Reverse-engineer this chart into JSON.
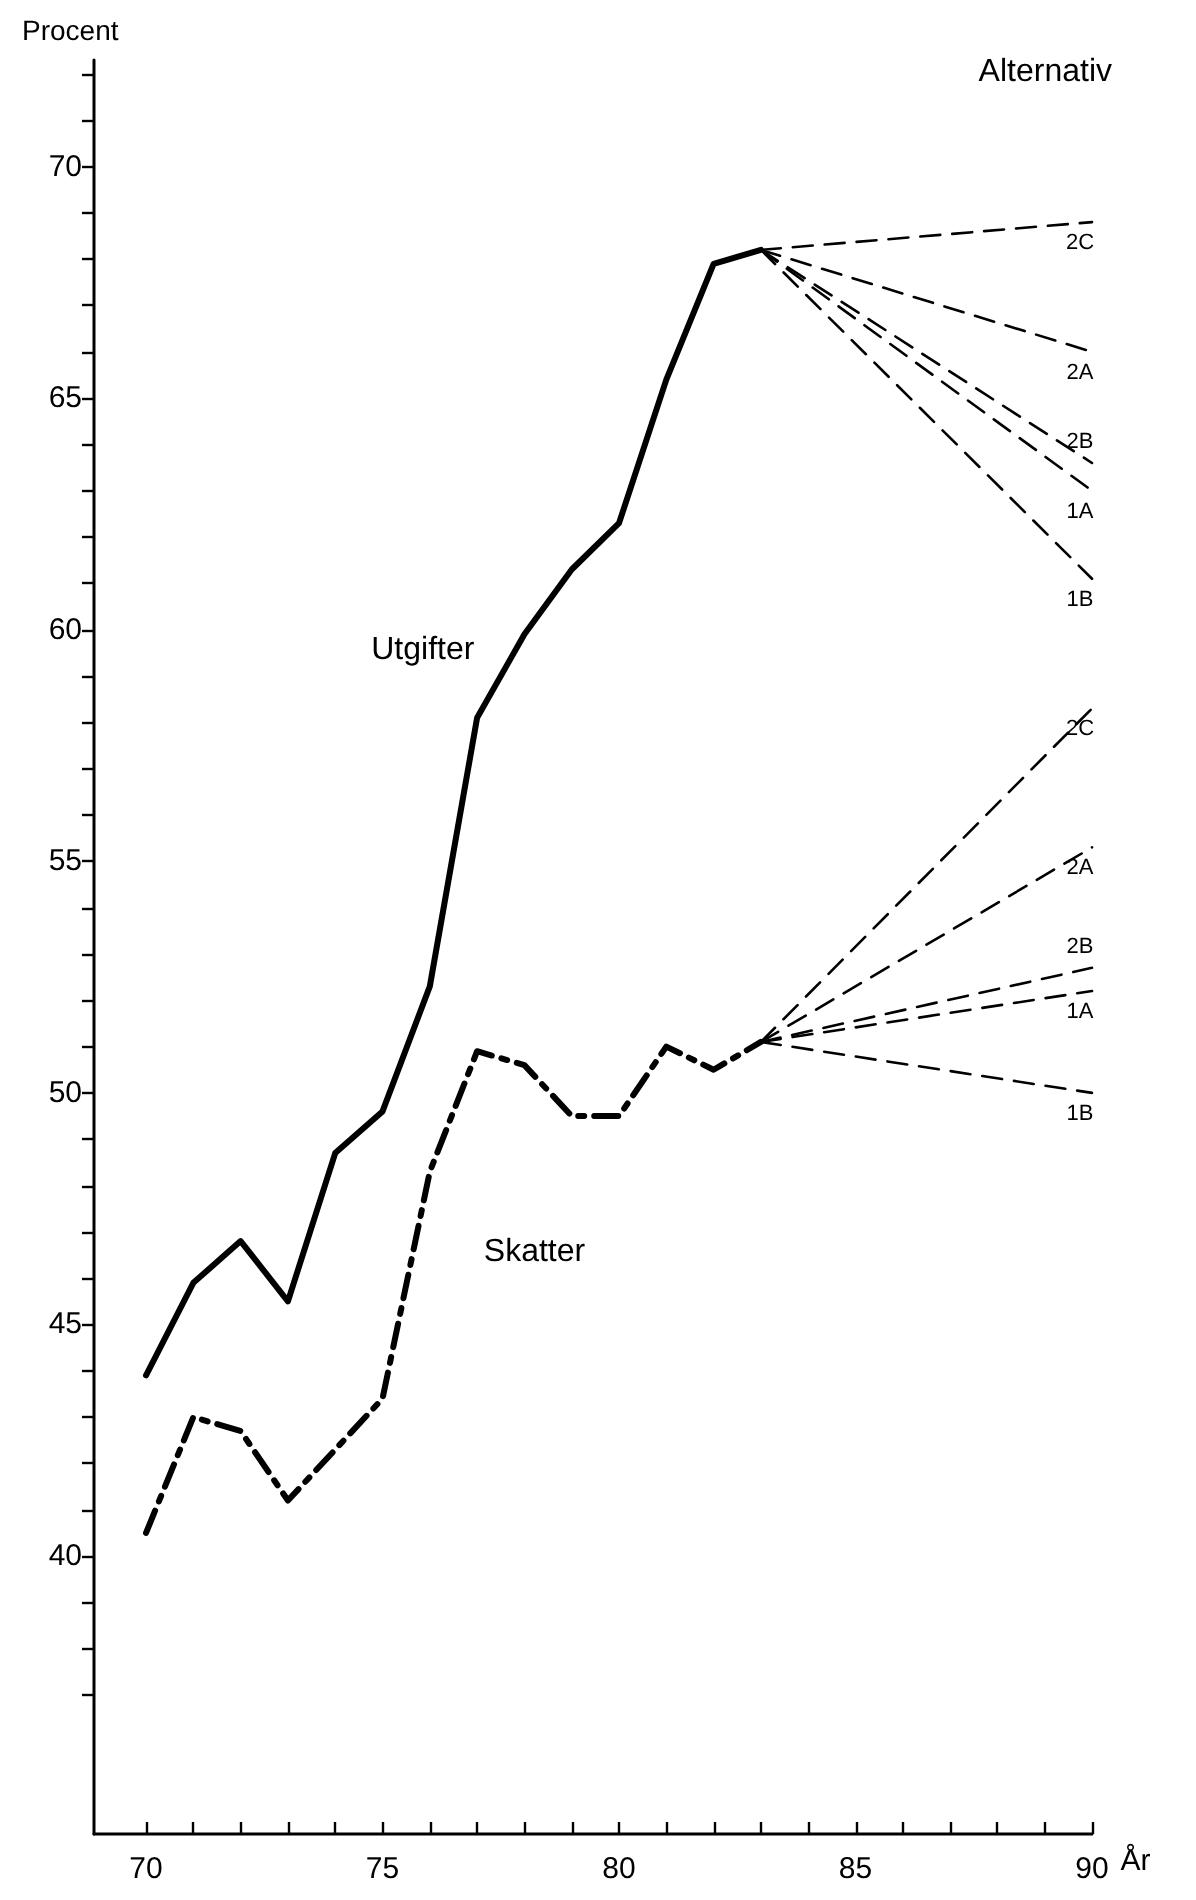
{
  "chart_data": {
    "type": "line",
    "xlabel": "År",
    "ylabel": "Procent",
    "annotations": [
      "Alternativ"
    ],
    "xlim": [
      68.9,
      90
    ],
    "ylim": [
      34,
      72.3
    ],
    "xticks": [
      70,
      {
        "value": 71,
        "label": null
      },
      {
        "value": 72,
        "label": null
      },
      {
        "value": 73,
        "label": null
      },
      {
        "value": 74,
        "label": null
      },
      75,
      {
        "value": 76,
        "label": null
      },
      {
        "value": 77,
        "label": null
      },
      {
        "value": 78,
        "label": null
      },
      {
        "value": 79,
        "label": null
      },
      80,
      {
        "value": 81,
        "label": null
      },
      {
        "value": 82,
        "label": null
      },
      {
        "value": 83,
        "label": null
      },
      {
        "value": 84,
        "label": null
      },
      85,
      {
        "value": 86,
        "label": null
      },
      {
        "value": 87,
        "label": null
      },
      {
        "value": 88,
        "label": null
      },
      {
        "value": 89,
        "label": null
      },
      90
    ],
    "yticks": [
      {
        "value": 37,
        "label": null
      },
      {
        "value": 38,
        "label": null
      },
      {
        "value": 39,
        "label": null
      },
      40,
      {
        "value": 41,
        "label": null
      },
      {
        "value": 42,
        "label": null
      },
      {
        "value": 43,
        "label": null
      },
      {
        "value": 44,
        "label": null
      },
      45,
      {
        "value": 46,
        "label": null
      },
      {
        "value": 47,
        "label": null
      },
      {
        "value": 48,
        "label": null
      },
      {
        "value": 49,
        "label": null
      },
      50,
      {
        "value": 51,
        "label": null
      },
      {
        "value": 52,
        "label": null
      },
      {
        "value": 53,
        "label": null
      },
      {
        "value": 54,
        "label": null
      },
      55,
      {
        "value": 56,
        "label": null
      },
      {
        "value": 57,
        "label": null
      },
      {
        "value": 58,
        "label": null
      },
      {
        "value": 59,
        "label": null
      },
      60,
      {
        "value": 61,
        "label": null
      },
      {
        "value": 62,
        "label": null
      },
      {
        "value": 63,
        "label": null
      },
      {
        "value": 64,
        "label": null
      },
      65,
      {
        "value": 66,
        "label": null
      },
      {
        "value": 67,
        "label": null
      },
      {
        "value": 68,
        "label": null
      },
      {
        "value": 69,
        "label": null
      },
      70,
      {
        "value": 71,
        "label": null
      },
      {
        "value": 72,
        "label": null
      }
    ],
    "grid": false,
    "legend": false,
    "marker": "none",
    "series": [
      {
        "name": "Utgifter",
        "color": "#000000",
        "line_style": "solid",
        "x": [
          70,
          71,
          72,
          73,
          74,
          75,
          76,
          77,
          78,
          79,
          80,
          81,
          82,
          83
        ],
        "values": [
          43.9,
          45.9,
          46.8,
          45.5,
          48.7,
          49.6,
          52.3,
          58.1,
          59.9,
          61.3,
          62.3,
          65.4,
          67.9,
          68.2
        ]
      },
      {
        "name": "Skatter",
        "color": "#000000",
        "line_style": "dashdot",
        "x": [
          70,
          71,
          72,
          73,
          74,
          75,
          76,
          77,
          78,
          79,
          80,
          81,
          82,
          83
        ],
        "values": [
          40.5,
          43.0,
          42.7,
          41.2,
          42.3,
          43.4,
          48.3,
          50.9,
          50.6,
          49.5,
          49.5,
          51.0,
          50.5,
          51.1
        ]
      },
      {
        "name": "2C",
        "color": "#000000",
        "line_style": "dashed",
        "x": [
          83,
          90
        ],
        "values": [
          68.2,
          68.8
        ]
      },
      {
        "name": "2A",
        "color": "#000000",
        "line_style": "dashed",
        "x": [
          83,
          90
        ],
        "values": [
          68.2,
          66.0
        ]
      },
      {
        "name": "2B",
        "color": "#000000",
        "line_style": "dashed",
        "x": [
          83,
          90
        ],
        "values": [
          68.2,
          63.6
        ]
      },
      {
        "name": "1A",
        "color": "#000000",
        "line_style": "dashed",
        "x": [
          83,
          90
        ],
        "values": [
          68.2,
          63.0
        ]
      },
      {
        "name": "1B",
        "color": "#000000",
        "line_style": "dashed",
        "x": [
          83,
          90
        ],
        "values": [
          68.2,
          61.1
        ]
      },
      {
        "name": "2C",
        "color": "#000000",
        "line_style": "dashed",
        "x": [
          83,
          90
        ],
        "values": [
          51.1,
          58.3
        ]
      },
      {
        "name": "2A",
        "color": "#000000",
        "line_style": "dashed",
        "x": [
          83,
          90
        ],
        "values": [
          51.1,
          55.3
        ]
      },
      {
        "name": "2B",
        "color": "#000000",
        "line_style": "dashed",
        "x": [
          83,
          90
        ],
        "values": [
          51.1,
          52.7
        ]
      },
      {
        "name": "1A",
        "color": "#000000",
        "line_style": "dashed",
        "x": [
          83,
          90
        ],
        "values": [
          51.1,
          52.2
        ]
      },
      {
        "name": "1B",
        "color": "#000000",
        "line_style": "dashed",
        "x": [
          83,
          90
        ],
        "values": [
          51.1,
          50.0
        ]
      }
    ]
  }
}
